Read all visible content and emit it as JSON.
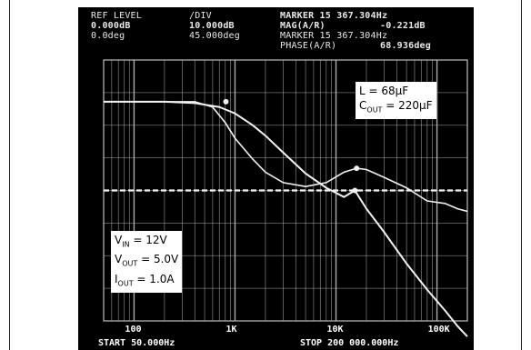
{
  "header": {
    "ref_level_label": "REF LEVEL",
    "ref_level_mag": "0.000dB",
    "ref_level_phase": "0.0deg",
    "div_label": "/DIV",
    "div_mag": "10.000dB",
    "div_phase": "45.000deg",
    "marker1": "MARKER 15 367.304Hz",
    "mag_label": "MAG(A/R)",
    "mag_value": "-0.221dB",
    "marker2": "MARKER 15 367.304Hz",
    "phase_label": "PHASE(A/R)",
    "phase_value": "68.936deg"
  },
  "legend_top": {
    "l_line": "L = 68µF",
    "cout_prefix": "C",
    "cout_sub": "OUT",
    "cout_value": " = 220µF"
  },
  "legend_bottom": {
    "vin_prefix": "V",
    "vin_sub": "IN",
    "vin_value": " = 12V",
    "vout_prefix": "V",
    "vout_sub": "OUT",
    "vout_value": " = 5.0V",
    "iout_prefix": "I",
    "iout_sub": "OUT",
    "iout_value": " = 1.0A"
  },
  "footer": {
    "start": "START 50.000Hz",
    "stop": "STOP 200 000.000Hz"
  },
  "colors": {
    "background": "#000000",
    "trace": "#f2f2f2",
    "grid": "#bdbdbd"
  },
  "chart_data": {
    "type": "line",
    "x_scale": "log",
    "xlim": [
      50,
      200000
    ],
    "x_ticks": [
      {
        "value": 100,
        "label": "100"
      },
      {
        "value": 1000,
        "label": "1K"
      },
      {
        "value": 10000,
        "label": "10K"
      },
      {
        "value": 100000,
        "label": "100K"
      }
    ],
    "grid": true,
    "reference_line": {
      "label": "0dB / 0deg",
      "y_fraction": 0.5
    },
    "series": [
      {
        "name": "",
        "role": "gain",
        "x": [
          50,
          100,
          200,
          400,
          700,
          1000,
          1500,
          2000,
          3000,
          5000,
          8000,
          12000,
          15400,
          20000,
          30000,
          50000,
          80000,
          120000,
          160000,
          200000
        ],
        "y": [
          0.84,
          0.84,
          0.84,
          0.835,
          0.82,
          0.795,
          0.75,
          0.71,
          0.645,
          0.565,
          0.51,
          0.475,
          0.5,
          0.43,
          0.34,
          0.22,
          0.12,
          0.04,
          -0.02,
          -0.06
        ]
      },
      {
        "name": "",
        "role": "phase",
        "x": [
          50,
          100,
          200,
          400,
          600,
          800,
          1000,
          1500,
          2000,
          3000,
          5000,
          8000,
          12000,
          16000,
          20000,
          30000,
          50000,
          80000,
          120000,
          160000,
          200000
        ],
        "y": [
          0.84,
          0.84,
          0.84,
          0.84,
          0.82,
          0.76,
          0.7,
          0.62,
          0.57,
          0.53,
          0.515,
          0.53,
          0.57,
          0.585,
          0.58,
          0.55,
          0.51,
          0.46,
          0.45,
          0.43,
          0.42
        ]
      }
    ]
  }
}
